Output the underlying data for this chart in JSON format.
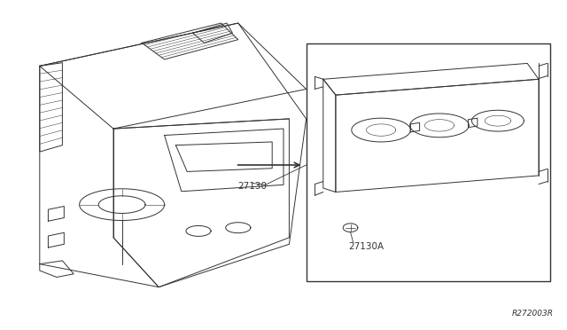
{
  "background_color": "#ffffff",
  "line_color": "#333333",
  "fig_width": 6.4,
  "fig_height": 3.72,
  "dpi": 100,
  "label_27130": "27130",
  "label_27130A": "27130A",
  "label_ref": "R272003R"
}
